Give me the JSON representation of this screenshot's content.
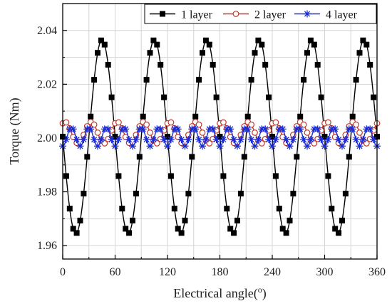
{
  "chart_data": {
    "type": "line",
    "title": "",
    "xlabel": "Electrical angle(",
    "xlabel_sup": "o",
    "xlabel_end": ")",
    "ylabel": "Torque (Nm)",
    "xlim": [
      0,
      360
    ],
    "ylim": [
      1.955,
      2.05
    ],
    "x_ticks": [
      0,
      60,
      120,
      180,
      240,
      300,
      360
    ],
    "y_ticks": [
      1.96,
      1.98,
      2.0,
      2.02,
      2.04
    ],
    "y_tick_labels": [
      "1.96",
      "1.98",
      "2.00",
      "2.02",
      "2.04"
    ],
    "grid": true,
    "legend": "top-right",
    "series": [
      {
        "name": "1 layer",
        "color": "#000000",
        "marker": "filled-square",
        "mean": 2.0005,
        "amplitude": 0.036,
        "period_deg": 60,
        "phase_deg": -30,
        "marker_step_deg": 4
      },
      {
        "name": "2 layer",
        "color": "#c0392b",
        "marker": "open-circle",
        "mean": 2.002,
        "amplitude": 0.004,
        "period_deg": 30,
        "phase_deg": -25,
        "marker_step_deg": 4
      },
      {
        "name": "4 layer",
        "color": "#1a2bd8",
        "marker": "asterisk",
        "mean": 2.0005,
        "amplitude": 0.0035,
        "period_deg": 20,
        "phase_deg": -5,
        "marker_step_deg": 4
      }
    ]
  }
}
